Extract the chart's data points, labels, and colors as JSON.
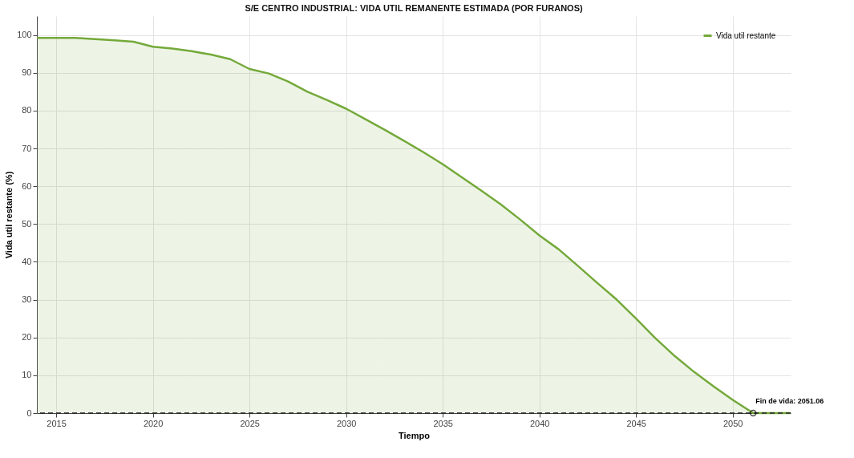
{
  "chart_data": {
    "type": "area",
    "title": "S/E CENTRO INDUSTRIAL: VIDA UTIL REMANENTE ESTIMADA (POR FURANOS)",
    "xlabel": "Tiempo",
    "ylabel": "Vida util restante (%)",
    "series": [
      {
        "name": "Vida util restante",
        "color": "#74a93a",
        "x": [
          2014,
          2015,
          2016,
          2017,
          2018,
          2019,
          2020,
          2021,
          2022,
          2023,
          2024,
          2025,
          2026,
          2027,
          2028,
          2029,
          2030,
          2031,
          2032,
          2033,
          2034,
          2035,
          2036,
          2037,
          2038,
          2039,
          2040,
          2041,
          2042,
          2043,
          2044,
          2045,
          2046,
          2047,
          2048,
          2049,
          2050,
          2051.06,
          2052,
          2053
        ],
        "values": [
          99.2,
          99.2,
          99.2,
          98.9,
          98.6,
          98.2,
          96.9,
          96.4,
          95.7,
          94.8,
          93.6,
          91.0,
          89.8,
          87.7,
          85.0,
          82.8,
          80.5,
          77.7,
          74.9,
          72.0,
          69.0,
          65.8,
          62.3,
          58.8,
          55.2,
          51.2,
          47.0,
          43.3,
          38.9,
          34.4,
          30.0,
          25.0,
          19.8,
          15.1,
          10.9,
          7.1,
          3.5,
          0,
          0,
          0
        ]
      }
    ],
    "xlim": [
      2014,
      2053
    ],
    "xticks": [
      2015,
      2020,
      2025,
      2030,
      2035,
      2040,
      2045,
      2050
    ],
    "ylim": [
      0,
      105
    ],
    "yticks": [
      0,
      10,
      20,
      30,
      40,
      50,
      60,
      70,
      80,
      90,
      100
    ],
    "ref_lines": [
      {
        "axis": "y",
        "value": 0,
        "color": "#222222",
        "line_style": "dashed"
      }
    ],
    "annotations": [
      {
        "text": "Fin de vida: 2051.06",
        "x": 2051.06,
        "y": 0
      }
    ],
    "grid": true,
    "legend": "top right"
  }
}
